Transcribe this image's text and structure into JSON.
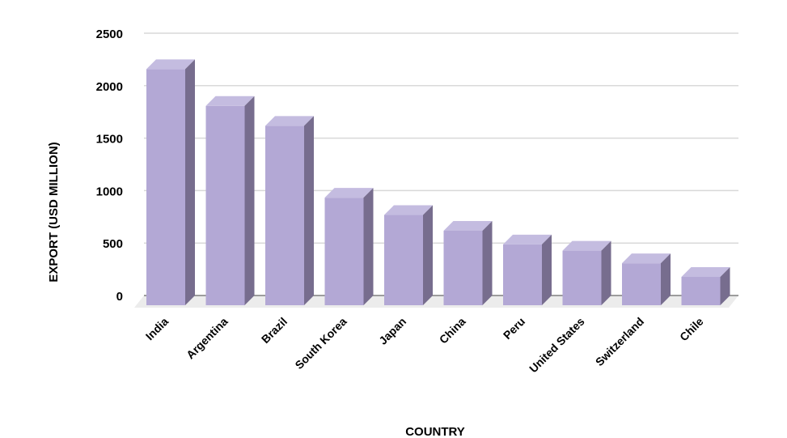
{
  "chart_data": {
    "type": "bar",
    "title": "",
    "xlabel": "COUNTRY",
    "ylabel": "EXPORT (USD MILLION)",
    "categories": [
      "India",
      "Argentina",
      "Brazil",
      "South Korea",
      "Japan",
      "China",
      "Peru",
      "United States",
      "Switzerland",
      "Chile"
    ],
    "values": [
      2250,
      1900,
      1710,
      1025,
      860,
      710,
      580,
      520,
      400,
      270
    ],
    "ylim": [
      0,
      2500
    ],
    "yticks": [
      0,
      500,
      1000,
      1500,
      2000,
      2500
    ],
    "grid": true,
    "legend": "none",
    "style": "3d-column",
    "colors": {
      "front": "#b3a8d5",
      "top": "#c4bce0",
      "side": "#776d8e",
      "floor": "#ececec",
      "grid": "#d9d9d9"
    }
  }
}
